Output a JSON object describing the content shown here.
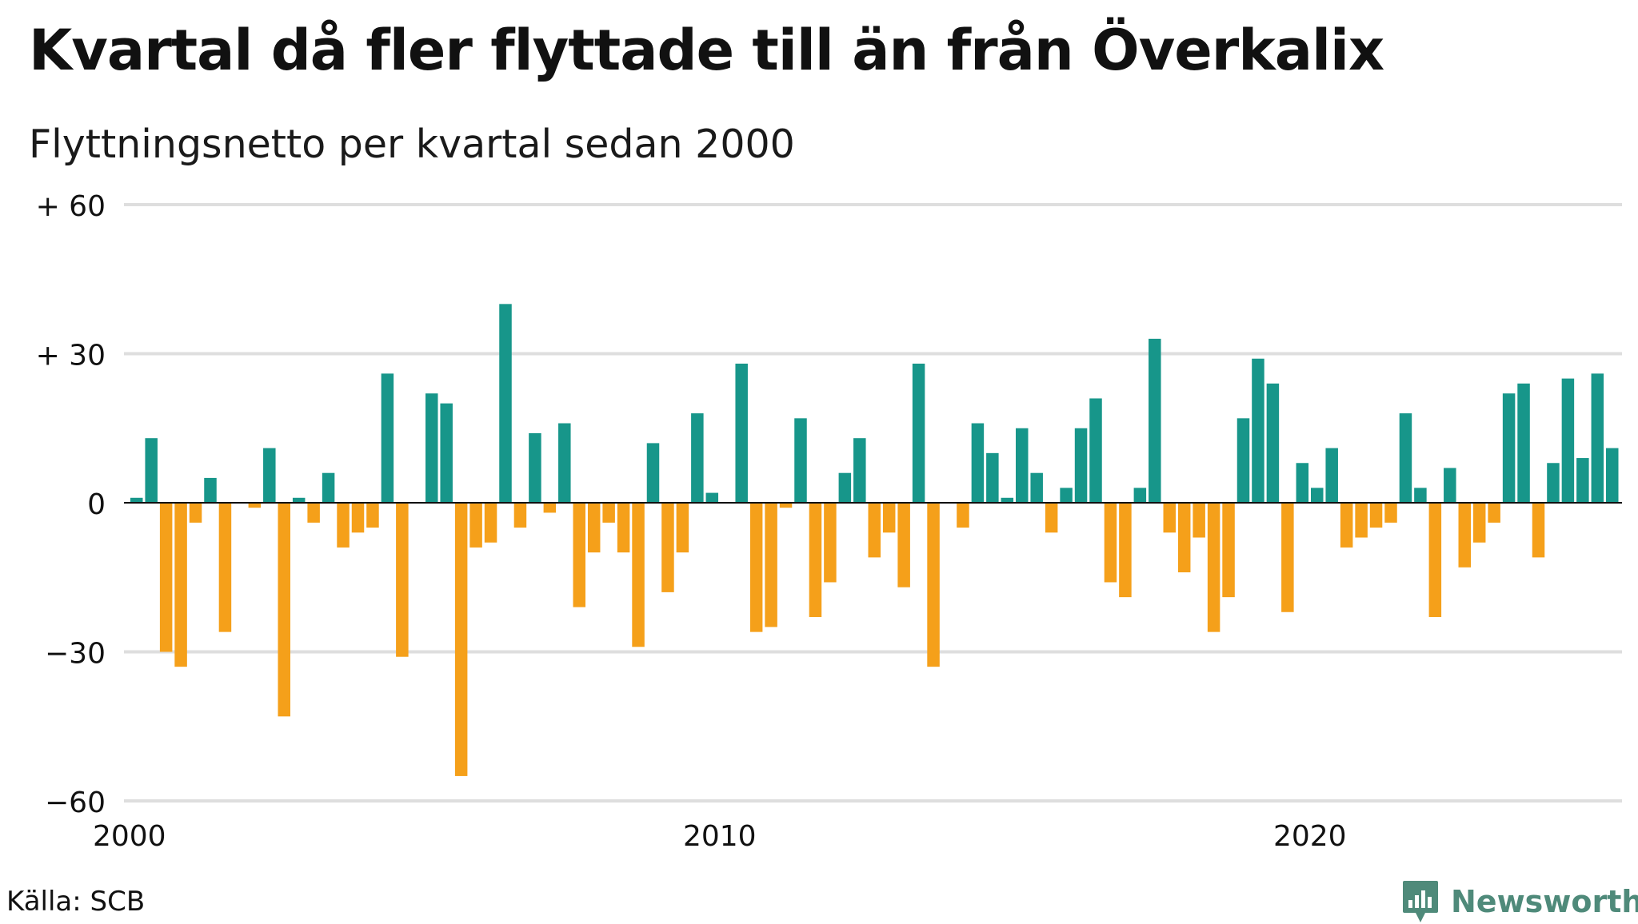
{
  "title": "Kvartal då fler flyttade till än från Överkalix",
  "subtitle": "Flyttningsnetto per kvartal sedan 2000",
  "source": "Källa: SCB",
  "brand": "Newsworthy",
  "colors": {
    "positive": "#17968a",
    "negative": "#f5a01a",
    "grid": "#dedede",
    "brand": "#4f8a7a"
  },
  "chart_data": {
    "type": "bar",
    "x_start_year": 2000,
    "periods_per_year": 4,
    "ylim": [
      -60,
      60
    ],
    "yticks": [
      {
        "value": 60,
        "label": "+ 60"
      },
      {
        "value": 30,
        "label": "+ 30"
      },
      {
        "value": 0,
        "label": "0"
      },
      {
        "value": -30,
        "label": "−30"
      },
      {
        "value": -60,
        "label": "−60"
      }
    ],
    "xticks": [
      {
        "year": 2000,
        "label": "2000"
      },
      {
        "year": 2010,
        "label": "2010"
      },
      {
        "year": 2020,
        "label": "2020"
      }
    ],
    "values": [
      1,
      13,
      -30,
      -33,
      -4,
      5,
      -26,
      0,
      -1,
      11,
      -43,
      1,
      -4,
      6,
      -9,
      -6,
      -5,
      26,
      -31,
      0,
      22,
      20,
      -55,
      -9,
      -8,
      40,
      -5,
      14,
      -2,
      16,
      -21,
      -10,
      -4,
      -10,
      -29,
      12,
      -18,
      -10,
      18,
      2,
      0,
      28,
      -26,
      -25,
      -1,
      17,
      -23,
      -16,
      6,
      13,
      -11,
      -6,
      -17,
      28,
      -33,
      0,
      -5,
      16,
      10,
      1,
      15,
      6,
      -6,
      3,
      15,
      21,
      -16,
      -19,
      3,
      33,
      -6,
      -14,
      -7,
      -26,
      -19,
      17,
      29,
      24,
      -22,
      8,
      3,
      11,
      -9,
      -7,
      -5,
      -4,
      18,
      3,
      -23,
      7,
      -13,
      -8,
      -4,
      22,
      24,
      -11,
      8,
      25,
      9,
      26,
      11
    ]
  }
}
